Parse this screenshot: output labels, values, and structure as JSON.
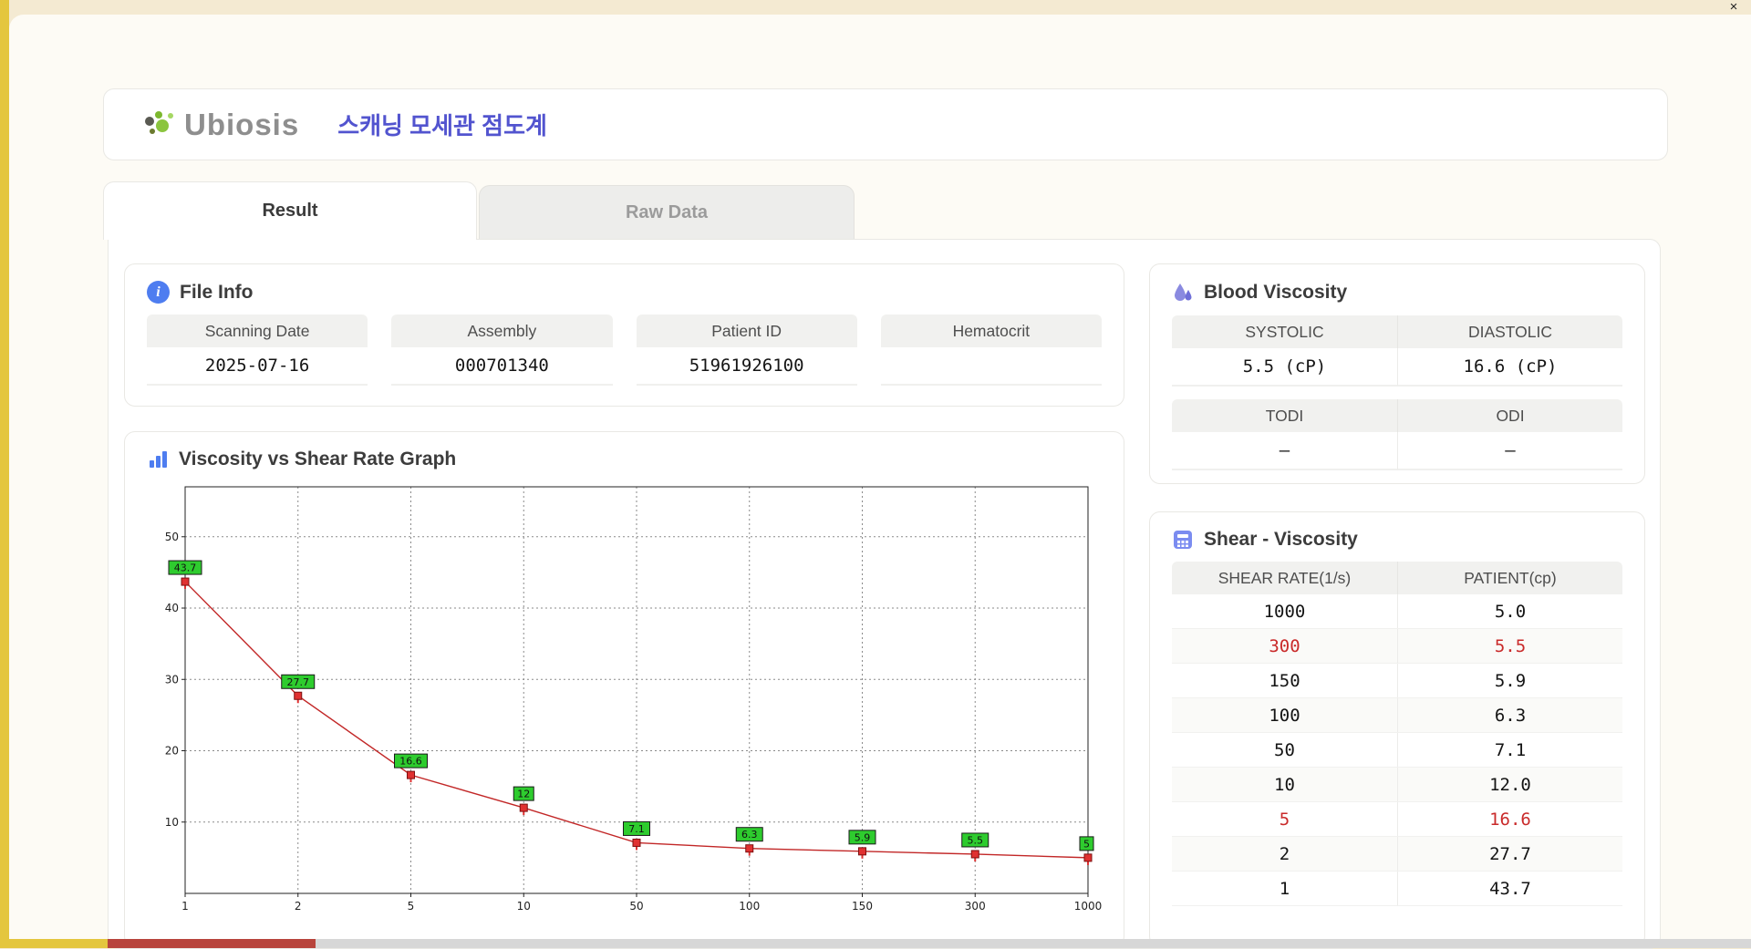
{
  "window": {
    "close_label": "×"
  },
  "header": {
    "logo": "Ubiosis",
    "app_title": "스캐닝 모세관 점도계"
  },
  "tabs": {
    "result": "Result",
    "raw": "Raw Data"
  },
  "file_info": {
    "title": "File Info",
    "fields": [
      {
        "label": "Scanning Date",
        "value": "2025-07-16"
      },
      {
        "label": "Assembly",
        "value": "000701340"
      },
      {
        "label": "Patient ID",
        "value": "51961926100"
      },
      {
        "label": "Hematocrit",
        "value": ""
      }
    ]
  },
  "graph_section": {
    "title": "Viscosity vs Shear Rate Graph"
  },
  "chart_data": {
    "type": "line",
    "title": "Viscosity vs Shear Rate Graph",
    "categories": [
      "1",
      "2",
      "5",
      "10",
      "50",
      "100",
      "150",
      "300",
      "1000"
    ],
    "values": [
      43.7,
      27.7,
      16.6,
      12,
      7.1,
      6.3,
      5.9,
      5.5,
      5
    ],
    "point_labels": [
      "43.7",
      "27.7",
      "16.6",
      "12",
      "7.1",
      "6.3",
      "5.9",
      "5.5",
      "5"
    ],
    "y_ticks": [
      10,
      20,
      30,
      40,
      50
    ],
    "ylim": [
      0,
      57
    ],
    "xlabel": "",
    "ylabel": "",
    "grid": "dotted",
    "legend": "none",
    "line_color": "#c22727",
    "marker_color": "#e03131",
    "marker_edge": "#7c1010",
    "label_bg": "#2ecc2e",
    "label_edge": "#1a1a1a"
  },
  "blood_viscosity": {
    "title": "Blood Viscosity",
    "groups": [
      {
        "headers": [
          "SYSTOLIC",
          "DIASTOLIC"
        ],
        "values": [
          "5.5 (cP)",
          "16.6 (cP)"
        ]
      },
      {
        "headers": [
          "TODI",
          "ODI"
        ],
        "values": [
          "–",
          "–"
        ]
      }
    ]
  },
  "shear_viscosity": {
    "title": "Shear - Viscosity",
    "columns": [
      "SHEAR RATE(1/s)",
      "PATIENT(cp)"
    ],
    "highlight_color": "#c92a2a",
    "rows": [
      {
        "rate": "1000",
        "patient": "5.0",
        "highlight": false
      },
      {
        "rate": "300",
        "patient": "5.5",
        "highlight": true
      },
      {
        "rate": "150",
        "patient": "5.9",
        "highlight": false
      },
      {
        "rate": "100",
        "patient": "6.3",
        "highlight": false
      },
      {
        "rate": "50",
        "patient": "7.1",
        "highlight": false
      },
      {
        "rate": "10",
        "patient": "12.0",
        "highlight": false
      },
      {
        "rate": "5",
        "patient": "16.6",
        "highlight": true
      },
      {
        "rate": "2",
        "patient": "27.7",
        "highlight": false
      },
      {
        "rate": "1",
        "patient": "43.7",
        "highlight": false
      }
    ]
  }
}
